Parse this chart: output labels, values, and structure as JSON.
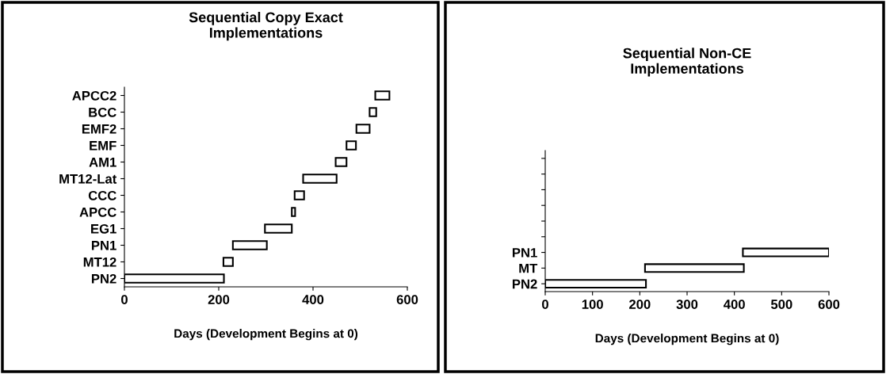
{
  "chart_data": [
    {
      "type": "bar",
      "orientation": "horizontal",
      "title": "Sequential Copy Exact\nImplementations",
      "xlabel": "Days (Development Begins at 0)",
      "categories": [
        "APCC2",
        "BCC",
        "EMF2",
        "EMF",
        "AM1",
        "MT12-Lat",
        "CCC",
        "APCC",
        "EG1",
        "PN1",
        "MT12",
        "PN2"
      ],
      "base": [
        532,
        520,
        492,
        471,
        448,
        379,
        361,
        355,
        298,
        230,
        210,
        0
      ],
      "values": [
        30,
        14,
        28,
        20,
        23,
        71,
        20,
        7,
        57,
        72,
        20,
        211
      ],
      "color": "#ffffff",
      "xlim": [
        0,
        600
      ],
      "xticks": [
        0,
        200,
        400,
        600
      ],
      "grid": false,
      "legend": false
    },
    {
      "type": "bar",
      "orientation": "horizontal",
      "title": "Sequential Non-CE\nImplementations",
      "xlabel": "Days (Development Begins at 0)",
      "categories": [
        null,
        null,
        null,
        null,
        null,
        null,
        "PN1",
        "MT",
        "PN2"
      ],
      "base": [
        null,
        null,
        null,
        null,
        null,
        null,
        418,
        211,
        0
      ],
      "values": [
        null,
        null,
        null,
        null,
        null,
        null,
        182,
        209,
        213
      ],
      "color": "#ffffff",
      "xlim": [
        0,
        600
      ],
      "xticks": [
        0,
        100,
        200,
        300,
        400,
        500,
        600
      ],
      "grid": false,
      "legend": false
    }
  ]
}
